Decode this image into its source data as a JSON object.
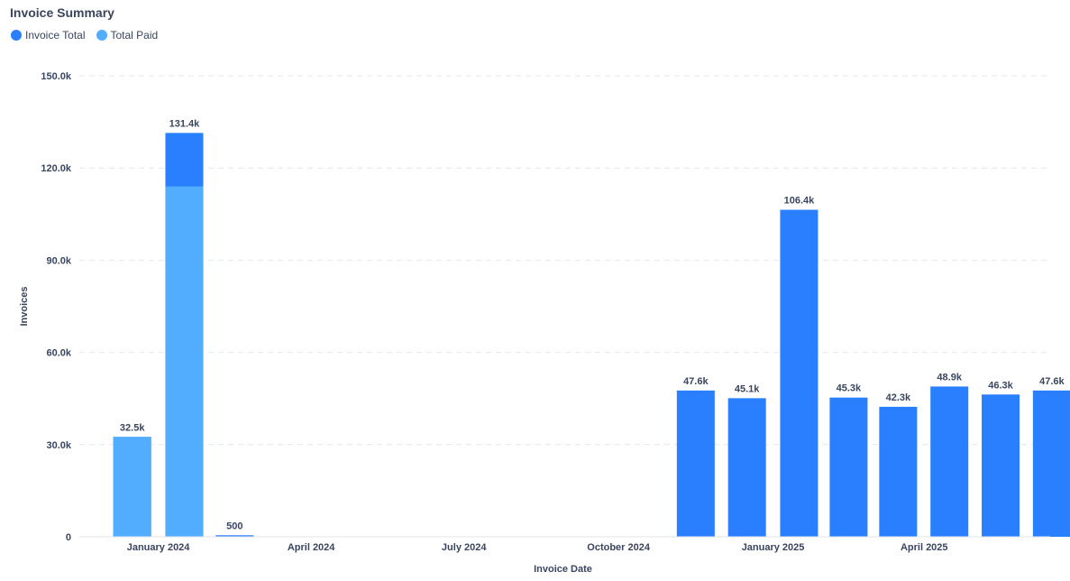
{
  "chart_data": {
    "type": "bar",
    "title": "Invoice Summary",
    "xlabel": "Invoice Date",
    "ylabel": "Invoices",
    "ylim": [
      0,
      150000
    ],
    "yticks": [
      0,
      30000,
      60000,
      90000,
      120000,
      150000
    ],
    "ytick_labels": [
      "0",
      "30.0k",
      "60.0k",
      "90.0k",
      "120.0k",
      "150.0k"
    ],
    "x_ticks": [
      {
        "label": "January 2024",
        "date": "2024-01-01"
      },
      {
        "label": "April 2024",
        "date": "2024-04-01"
      },
      {
        "label": "July 2024",
        "date": "2024-07-01"
      },
      {
        "label": "October 2024",
        "date": "2024-10-01"
      },
      {
        "label": "January 2025",
        "date": "2025-01-01"
      },
      {
        "label": "April 2025",
        "date": "2025-04-01"
      }
    ],
    "x_range": [
      "2023-11-15",
      "2025-06-15"
    ],
    "legend_position": "top-left",
    "grid": true,
    "categories": [
      "2023-12",
      "2024-01",
      "2024-02",
      "2024-11",
      "2024-12",
      "2025-01",
      "2025-02",
      "2025-03",
      "2025-04",
      "2025-05",
      "2025-06"
    ],
    "series": [
      {
        "name": "Invoice Total",
        "color": "#2a7fff",
        "values": [
          32500,
          131400,
          500,
          47600,
          45100,
          106400,
          45300,
          42300,
          48900,
          46300,
          47600
        ]
      },
      {
        "name": "Total Paid",
        "color": "#52adff",
        "values": [
          32500,
          114000,
          0,
          0,
          0,
          0,
          0,
          0,
          0,
          0,
          0
        ]
      }
    ],
    "data_labels": [
      "32.5k",
      "131.4k",
      "500",
      "47.6k",
      "45.1k",
      "106.4k",
      "45.3k",
      "42.3k",
      "48.9k",
      "46.3k",
      "47.6k"
    ]
  }
}
